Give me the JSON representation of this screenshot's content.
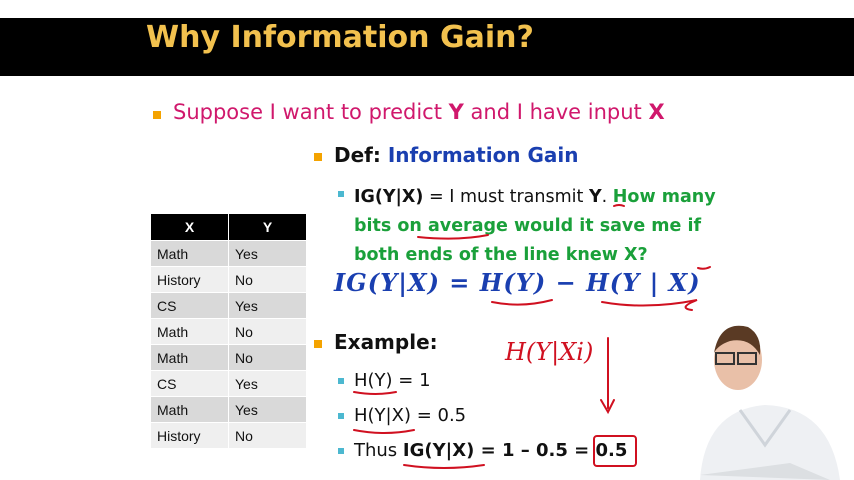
{
  "slide": {
    "title": "Why Information Gain?",
    "bullet1": {
      "prefix": "Suppose I want to predict ",
      "y": "Y",
      "mid": " and I have input ",
      "x": "X"
    },
    "def": {
      "label": "Def: ",
      "term": "Information Gain"
    },
    "ig": {
      "lhs": "IG(Y|X)",
      "text": " = I must transmit ",
      "y": "Y",
      "dot": ". ",
      "green": "How many bits on average would it save me if both ends of the line knew X?"
    },
    "formula": "IG(Y|X)  =  H(Y)  −  H(Y | X)",
    "example_label": "Example:",
    "examples": [
      {
        "text": "H(Y) = 1"
      },
      {
        "text": "H(Y|X) = 0.5"
      },
      {
        "prefix": "Thus ",
        "bold": "IG(Y|X) = 1 – 0.5 = 0.5"
      }
    ],
    "annotation": "H(Y|Xi)"
  },
  "table": {
    "headers": [
      "X",
      "Y"
    ],
    "rows": [
      [
        "Math",
        "Yes"
      ],
      [
        "History",
        "No"
      ],
      [
        "CS",
        "Yes"
      ],
      [
        "Math",
        "No"
      ],
      [
        "Math",
        "No"
      ],
      [
        "CS",
        "Yes"
      ],
      [
        "Math",
        "Yes"
      ],
      [
        "History",
        "No"
      ]
    ]
  },
  "colors": {
    "title": "#f2c14e",
    "bullet_text": "#d0186c",
    "def_blue": "#1a3fb0",
    "green": "#1aa03a",
    "ink_red": "#d01020"
  }
}
